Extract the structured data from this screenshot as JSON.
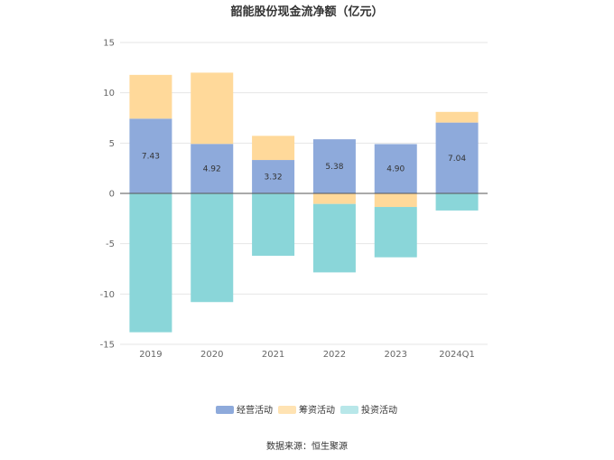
{
  "chart_data": {
    "type": "bar",
    "stacked": true,
    "title": "韶能股份现金流净额（亿元）",
    "categories": [
      "2019",
      "2020",
      "2021",
      "2022",
      "2023",
      "2024Q1"
    ],
    "ylim": [
      -15,
      15
    ],
    "yticks": [
      15,
      10,
      5,
      0,
      -5,
      -10,
      -15
    ],
    "series": [
      {
        "name": "经营活动",
        "color": "#8eaadb",
        "values": [
          7.43,
          4.92,
          3.32,
          5.38,
          4.9,
          7.04
        ]
      },
      {
        "name": "筹资活动",
        "color": "#ffd99a",
        "values": [
          4.35,
          7.08,
          2.4,
          -1.05,
          -1.35,
          1.06
        ]
      },
      {
        "name": "投资活动",
        "color": "#8ad6d9",
        "values": [
          -13.8,
          -10.8,
          -6.2,
          -6.8,
          -5.0,
          -1.7
        ]
      }
    ],
    "data_labels": [
      "7.43",
      "4.92",
      "3.32",
      "5.38",
      "4.90",
      "7.04"
    ],
    "legend": [
      {
        "name": "经营活动",
        "color": "#8eaadb"
      },
      {
        "name": "筹资活动",
        "color": "#ffe3b3"
      },
      {
        "name": "投资活动",
        "color": "#b8e7e9"
      }
    ],
    "source": "数据来源：恒生聚源"
  }
}
